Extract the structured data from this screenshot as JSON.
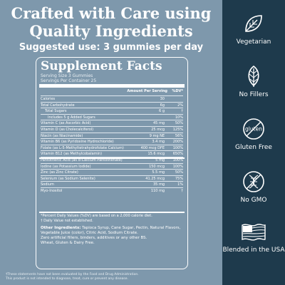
{
  "headline": {
    "line1": "Crafted with Care using",
    "line2": "Quality Ingredients"
  },
  "usage": "Suggested use: 3 gummies per day",
  "panel": {
    "title": "Supplement Facts",
    "serving_size": "Serving Size 3 Gummies",
    "servings_per_container": "Servings Per Container 25",
    "col_amount": "Amount Per Serving",
    "col_dv": "%DV*",
    "rows": [
      {
        "name": "Calories",
        "amt": "30",
        "dv": "",
        "style": ""
      },
      {
        "name": "Total Carbohydrate",
        "amt": "6g",
        "dv": "2%",
        "style": ""
      },
      {
        "name": "Total Sugars",
        "amt": "6 g",
        "dv": "†",
        "style": "indent"
      },
      {
        "name": "Includes 5 g Added Sugars",
        "amt": "",
        "dv": "10%",
        "style": "indent2"
      },
      {
        "name": "Vitamin C (as Ascorbic Acid)",
        "amt": "45 mg",
        "dv": "50%",
        "style": ""
      },
      {
        "name": "Vitamin D (as Cholecalciferol)",
        "amt": "25 mcg",
        "dv": "125%",
        "style": ""
      },
      {
        "name": "Niacin (as Niacinamide)",
        "amt": "9 mg NE",
        "dv": "56%",
        "style": ""
      },
      {
        "name": "Vitamin B6 (as Pyridoxine Hydrochloride)",
        "amt": "3.4 mg",
        "dv": "200%",
        "style": ""
      },
      {
        "name": "Folate (as L-5-Methyltetrahydrofolate Calcium)",
        "amt": "400 mcg DFE",
        "dv": "100%",
        "style": ""
      },
      {
        "name": "Vitamin B12 (as Methylcobalamin)",
        "amt": "15.6 mcg",
        "dv": "650%",
        "style": ""
      },
      {
        "name": "Pantothenic Acid (as d-Calcium Pantothenate)",
        "amt": "5 mg",
        "dv": "100%",
        "style": ""
      },
      {
        "name": "Iodine (as Potassium Iodide)",
        "amt": "150 mcg",
        "dv": "100%",
        "style": ""
      },
      {
        "name": "Zinc (as Zinc Citrate)",
        "amt": "5.5 mg",
        "dv": "50%",
        "style": ""
      },
      {
        "name": "Selenium (as Sodium Selenite)",
        "amt": "41.25 mcg",
        "dv": "75%",
        "style": ""
      },
      {
        "name": "Sodium",
        "amt": "35 mg",
        "dv": "1%",
        "style": ""
      },
      {
        "name": "Myo-Inositol",
        "amt": "110 mg",
        "dv": "†",
        "style": ""
      }
    ],
    "footnote_1": "*Percent Daily Values (%DV) are based on a 2,000 calorie diet.",
    "footnote_2": "† Daily Value not established.",
    "other_label": "Other Ingredients:",
    "other_text": "Tapioca Syrup, Cane Sugar, Pectin, Natural Flavors, Vegetable Juice (color), Citric Acid, Sodium Citrate.",
    "free_from_1": "Zero artificial fillers, binders, additives or any other BS.",
    "free_from_2": "Wheat, Gluten & Dairy Free."
  },
  "disclaimer": {
    "line1": "†These statements have not been evaluated by the Food and Drug Administration.",
    "line2": "This product is not intended to diagnose, treat, cure or prevent any disease."
  },
  "badges": [
    {
      "label": "Vegetarian",
      "icon": "leaf-icon"
    },
    {
      "label": "No Fillers",
      "icon": "leaf-outline-icon"
    },
    {
      "label": "Gluten Free",
      "icon": "gluten-free-icon"
    },
    {
      "label": "No GMO",
      "icon": "no-gmo-icon"
    },
    {
      "label": "Blended in the USA",
      "icon": "us-flag-icon"
    }
  ],
  "colors": {
    "background": "#7e98ac",
    "sidebar": "#1e3a4c",
    "text": "#ffffff"
  }
}
